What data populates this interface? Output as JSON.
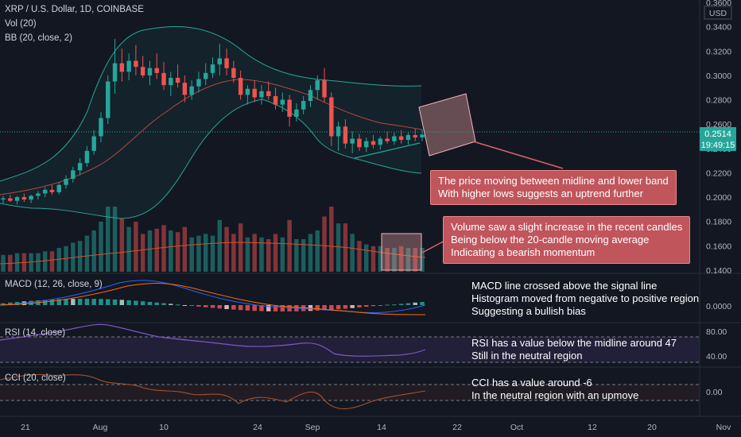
{
  "header": {
    "symbol": "XRP / U.S. Dollar, 1D, COINBASE",
    "volume_indicator": "Vol (20)",
    "bollinger_indicator": "BB (20, close, 2)",
    "currency": "USD"
  },
  "indicators": {
    "macd": {
      "label": "MACD (12, 26, close, 9)",
      "axis_value": "0.0000"
    },
    "rsi": {
      "label": "RSI (14, close)",
      "axis_values": [
        "80.00",
        "40.00"
      ]
    },
    "cci": {
      "label": "CCI (20, close)",
      "axis_value": "0.00"
    }
  },
  "price_marker": {
    "price": "0.2514",
    "countdown": "19:49:15"
  },
  "annotations": {
    "trend": [
      "The price moving between midline and lower band",
      "With higher lows suggests an uptrend further"
    ],
    "volume": [
      "Volume saw a slight increase in the recent candles",
      "Being below the 20-candle moving average",
      "Indicating a bearish momentum"
    ],
    "macd": [
      "MACD line crossed above the signal line",
      "Histogram moved from negative to positive region",
      "Suggesting a bullish bias"
    ],
    "rsi": [
      "RSI has a value below the midline around 47",
      "Still in the neutral region"
    ],
    "cci": [
      "CCI has a value around -6",
      "In the neutral region with an upmove"
    ]
  },
  "colors": {
    "background": "#131722",
    "up_candle": "#26a69a",
    "down_candle": "#ef5350",
    "bollinger_band": "#26a69a",
    "bollinger_basis": "#b44a3f",
    "volume_ma": "#d94f2a",
    "macd_line": "#2962ff",
    "signal_line": "#ff6d00",
    "rsi_line": "#7e57c2",
    "cci_line": "#a0522d",
    "callout": "#c0555c",
    "price_tag": "#26a69a"
  },
  "chart_data": {
    "type": "candlestick",
    "x_tick_labels": [
      "21",
      "Aug",
      "10",
      "24",
      "Sep",
      "14",
      "22",
      "Oct",
      "12",
      "20",
      "Nov"
    ],
    "y_tick_labels": [
      "0.3600",
      "0.3400",
      "0.3200",
      "0.3000",
      "0.2800",
      "0.2600",
      "0.2400",
      "0.2200",
      "0.2000",
      "0.1800",
      "0.1600",
      "0.1400"
    ],
    "y_range": [
      0.14,
      0.36
    ],
    "current_price": 0.2514,
    "ohlc_approx": [
      [
        0.198,
        0.201,
        0.195,
        0.199
      ],
      [
        0.199,
        0.202,
        0.196,
        0.197
      ],
      [
        0.197,
        0.201,
        0.194,
        0.2
      ],
      [
        0.2,
        0.203,
        0.196,
        0.198
      ],
      [
        0.198,
        0.202,
        0.195,
        0.201
      ],
      [
        0.201,
        0.205,
        0.198,
        0.203
      ],
      [
        0.203,
        0.208,
        0.2,
        0.206
      ],
      [
        0.206,
        0.21,
        0.202,
        0.204
      ],
      [
        0.204,
        0.212,
        0.202,
        0.21
      ],
      [
        0.21,
        0.218,
        0.207,
        0.215
      ],
      [
        0.215,
        0.225,
        0.212,
        0.222
      ],
      [
        0.222,
        0.232,
        0.218,
        0.228
      ],
      [
        0.228,
        0.242,
        0.225,
        0.238
      ],
      [
        0.238,
        0.255,
        0.235,
        0.25
      ],
      [
        0.25,
        0.27,
        0.245,
        0.265
      ],
      [
        0.265,
        0.3,
        0.26,
        0.295
      ],
      [
        0.295,
        0.33,
        0.285,
        0.31
      ],
      [
        0.31,
        0.322,
        0.295,
        0.303
      ],
      [
        0.303,
        0.318,
        0.296,
        0.312
      ],
      [
        0.312,
        0.325,
        0.3,
        0.307
      ],
      [
        0.307,
        0.316,
        0.298,
        0.3
      ],
      [
        0.3,
        0.312,
        0.292,
        0.306
      ],
      [
        0.306,
        0.318,
        0.297,
        0.302
      ],
      [
        0.302,
        0.311,
        0.288,
        0.292
      ],
      [
        0.292,
        0.303,
        0.283,
        0.298
      ],
      [
        0.298,
        0.309,
        0.29,
        0.294
      ],
      [
        0.294,
        0.3,
        0.278,
        0.284
      ],
      [
        0.284,
        0.296,
        0.28,
        0.291
      ],
      [
        0.291,
        0.303,
        0.286,
        0.297
      ],
      [
        0.297,
        0.31,
        0.292,
        0.302
      ],
      [
        0.302,
        0.315,
        0.298,
        0.309
      ],
      [
        0.309,
        0.326,
        0.3,
        0.314
      ],
      [
        0.314,
        0.322,
        0.3,
        0.306
      ],
      [
        0.306,
        0.312,
        0.294,
        0.298
      ],
      [
        0.298,
        0.304,
        0.28,
        0.284
      ],
      [
        0.284,
        0.292,
        0.276,
        0.289
      ],
      [
        0.289,
        0.296,
        0.278,
        0.282
      ],
      [
        0.282,
        0.292,
        0.276,
        0.287
      ],
      [
        0.287,
        0.295,
        0.28,
        0.283
      ],
      [
        0.283,
        0.29,
        0.272,
        0.276
      ],
      [
        0.276,
        0.286,
        0.27,
        0.28
      ],
      [
        0.28,
        0.284,
        0.258,
        0.266
      ],
      [
        0.266,
        0.277,
        0.262,
        0.272
      ],
      [
        0.272,
        0.283,
        0.268,
        0.279
      ],
      [
        0.279,
        0.292,
        0.274,
        0.288
      ],
      [
        0.288,
        0.3,
        0.28,
        0.296
      ],
      [
        0.296,
        0.306,
        0.278,
        0.282
      ],
      [
        0.282,
        0.286,
        0.242,
        0.25
      ],
      [
        0.25,
        0.262,
        0.238,
        0.258
      ],
      [
        0.258,
        0.264,
        0.24,
        0.244
      ],
      [
        0.244,
        0.254,
        0.236,
        0.248
      ],
      [
        0.248,
        0.252,
        0.238,
        0.241
      ],
      [
        0.241,
        0.249,
        0.237,
        0.246
      ],
      [
        0.246,
        0.251,
        0.24,
        0.243
      ],
      [
        0.243,
        0.25,
        0.239,
        0.248
      ],
      [
        0.248,
        0.254,
        0.244,
        0.246
      ],
      [
        0.246,
        0.253,
        0.243,
        0.25
      ],
      [
        0.25,
        0.255,
        0.244,
        0.247
      ],
      [
        0.247,
        0.253,
        0.243,
        0.251
      ],
      [
        0.251,
        0.256,
        0.246,
        0.249
      ],
      [
        0.249,
        0.256,
        0.246,
        0.2514
      ]
    ]
  }
}
